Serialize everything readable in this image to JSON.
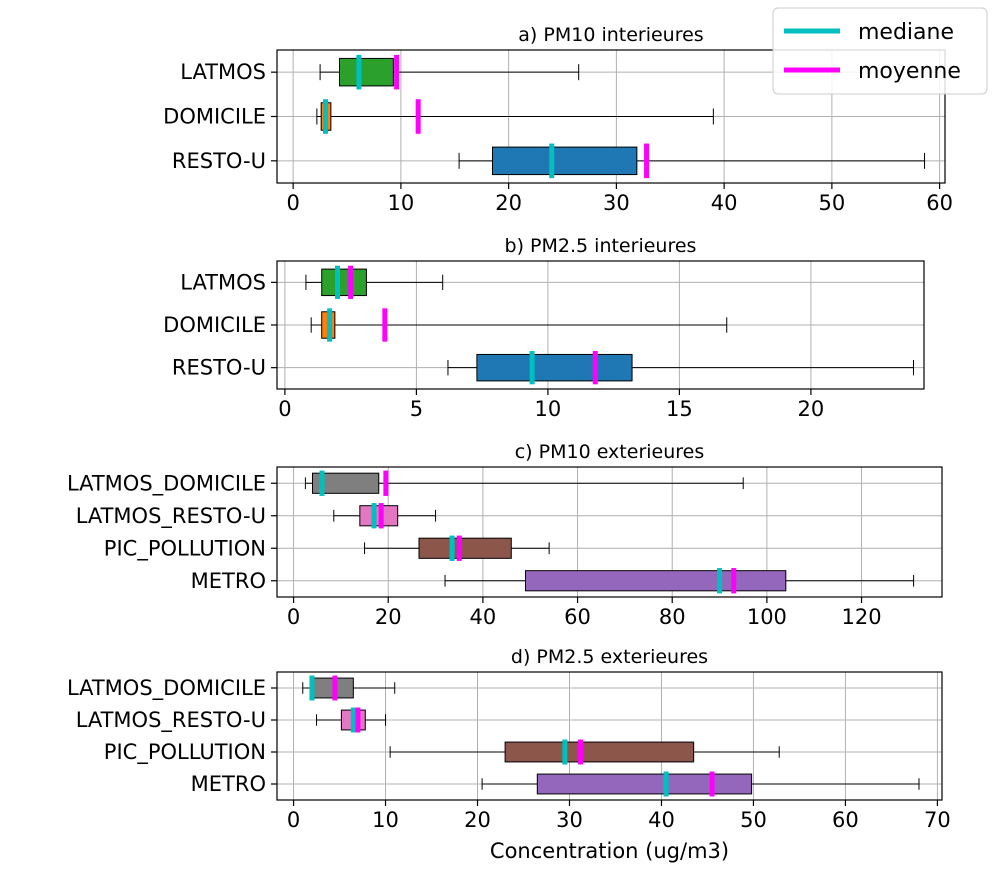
{
  "legend": {
    "placement": "top-right",
    "entries": [
      {
        "label": "mediane",
        "color": "#00bfbf"
      },
      {
        "label": "moyenne",
        "color": "#ff00ff"
      }
    ]
  },
  "shared_xlabel": "Concentration (ug/m3)",
  "colors": {
    "LATMOS": "#2ca02c",
    "DOMICILE": "#ff7f0e",
    "RESTO-U": "#1f77b4",
    "LATMOS_DOMICILE": "#7f7f7f",
    "LATMOS_RESTO-U": "#e377c2",
    "PIC_POLLUTION": "#8c564b",
    "METRO": "#9467bd",
    "median": "#00bfbf",
    "mean": "#ff00ff"
  },
  "chart_data": [
    {
      "type": "boxplot",
      "title": "a) PM10 interieures",
      "xlim": [
        -1.5,
        60.5
      ],
      "xticks": [
        0,
        10,
        20,
        30,
        40,
        50,
        60
      ],
      "grid": true,
      "categories": [
        "LATMOS",
        "DOMICILE",
        "RESTO-U"
      ],
      "boxes": [
        {
          "label": "LATMOS",
          "whislo": 2.5,
          "q1": 4.3,
          "median": 6.1,
          "q3": 9.3,
          "whishi": 26.5,
          "mean": 9.6
        },
        {
          "label": "DOMICILE",
          "whislo": 2.2,
          "q1": 2.6,
          "median": 3.0,
          "q3": 3.5,
          "whishi": 39.0,
          "mean": 11.6
        },
        {
          "label": "RESTO-U",
          "whislo": 15.4,
          "q1": 18.5,
          "median": 24.0,
          "q3": 31.9,
          "whishi": 58.6,
          "mean": 32.8
        }
      ]
    },
    {
      "type": "boxplot",
      "title": "b) PM2.5 interieures",
      "xlim": [
        -0.3,
        24.3
      ],
      "xticks": [
        0,
        5,
        10,
        15,
        20
      ],
      "grid": true,
      "categories": [
        "LATMOS",
        "DOMICILE",
        "RESTO-U"
      ],
      "boxes": [
        {
          "label": "LATMOS",
          "whislo": 0.8,
          "q1": 1.4,
          "median": 2.0,
          "q3": 3.1,
          "whishi": 6.0,
          "mean": 2.5
        },
        {
          "label": "DOMICILE",
          "whislo": 1.0,
          "q1": 1.4,
          "median": 1.7,
          "q3": 1.9,
          "whishi": 16.8,
          "mean": 3.8
        },
        {
          "label": "RESTO-U",
          "whislo": 6.2,
          "q1": 7.3,
          "median": 9.4,
          "q3": 13.2,
          "whishi": 23.9,
          "mean": 11.8
        }
      ]
    },
    {
      "type": "boxplot",
      "title": "c) PM10 exterieures",
      "xlim": [
        -3.5,
        137
      ],
      "xticks": [
        0,
        20,
        40,
        60,
        80,
        100,
        120
      ],
      "grid": true,
      "categories": [
        "LATMOS_DOMICILE",
        "LATMOS_RESTO-U",
        "PIC_POLLUTION",
        "METRO"
      ],
      "boxes": [
        {
          "label": "LATMOS_DOMICILE",
          "whislo": 2.5,
          "q1": 4.0,
          "median": 6.0,
          "q3": 18.0,
          "whishi": 95.0,
          "mean": 19.5
        },
        {
          "label": "LATMOS_RESTO-U",
          "whislo": 8.5,
          "q1": 14.0,
          "median": 17.0,
          "q3": 22.0,
          "whishi": 30.0,
          "mean": 18.5
        },
        {
          "label": "PIC_POLLUTION",
          "whislo": 15.0,
          "q1": 26.5,
          "median": 33.5,
          "q3": 46.0,
          "whishi": 54.0,
          "mean": 35.0
        },
        {
          "label": "METRO",
          "whislo": 32.0,
          "q1": 49.0,
          "median": 90.0,
          "q3": 104.0,
          "whishi": 131.0,
          "mean": 93.0
        }
      ]
    },
    {
      "type": "boxplot",
      "title": "d) PM2.5 exterieures",
      "xlim": [
        -1.8,
        70.5
      ],
      "xticks": [
        0,
        10,
        20,
        30,
        40,
        50,
        60,
        70
      ],
      "grid": true,
      "xlabel": "Concentration (ug/m3)",
      "categories": [
        "LATMOS_DOMICILE",
        "LATMOS_RESTO-U",
        "PIC_POLLUTION",
        "METRO"
      ],
      "boxes": [
        {
          "label": "LATMOS_DOMICILE",
          "whislo": 1.0,
          "q1": 1.8,
          "median": 2.0,
          "q3": 6.5,
          "whishi": 11.0,
          "mean": 4.5
        },
        {
          "label": "LATMOS_RESTO-U",
          "whislo": 2.5,
          "q1": 5.2,
          "median": 6.5,
          "q3": 7.8,
          "whishi": 10.0,
          "mean": 7.0
        },
        {
          "label": "PIC_POLLUTION",
          "whislo": 10.5,
          "q1": 23.0,
          "median": 29.5,
          "q3": 43.5,
          "whishi": 52.8,
          "mean": 31.2
        },
        {
          "label": "METRO",
          "whislo": 20.5,
          "q1": 26.5,
          "median": 40.5,
          "q3": 49.8,
          "whishi": 68.0,
          "mean": 45.5
        }
      ]
    }
  ]
}
